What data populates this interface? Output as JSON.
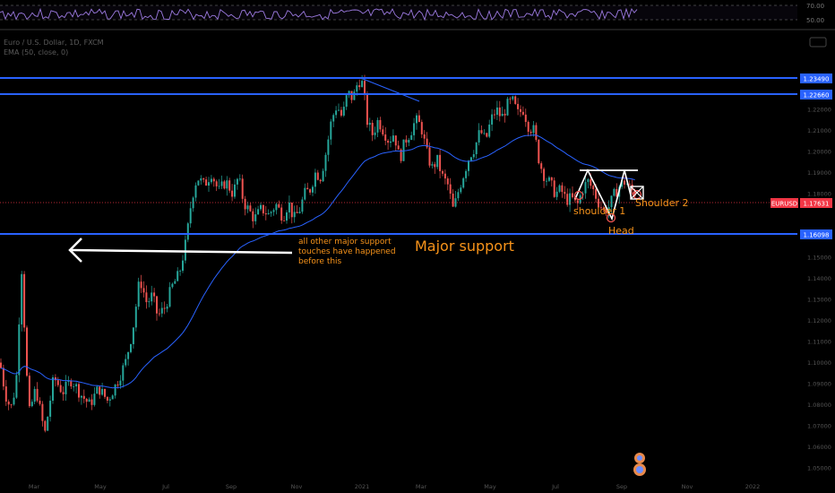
{
  "header": {
    "symbol_title": "Euro / U.S. Dollar, 1D, FXCM",
    "indicator": "EMA (50, close, 0)"
  },
  "oscillator": {
    "level_upper": "70.00",
    "level_mid": "50.00"
  },
  "colors": {
    "background": "#000000",
    "bull": "#26a69a",
    "bear": "#ef5350",
    "level_line": "#2962ff",
    "ema": "#2962ff",
    "annotation": "#f7931a",
    "price_tag": "#f23645"
  },
  "chart_data": {
    "type": "candlestick",
    "symbol": "EURUSD",
    "last_price": "1.17631",
    "y_ticks": [
      "1.22000",
      "1.21000",
      "1.20000",
      "1.19000",
      "1.18000",
      "1.16000",
      "1.15000",
      "1.14000",
      "1.13000",
      "1.12000",
      "1.11000",
      "1.10000",
      "1.09000",
      "1.08000",
      "1.07000",
      "1.06000",
      "1.05000"
    ],
    "x_ticks": [
      "Mar",
      "May",
      "Jul",
      "Sep",
      "Nov",
      "2021",
      "Mar",
      "May",
      "Jul",
      "Sep",
      "Nov",
      "2022"
    ],
    "levels": [
      {
        "value": 1.2349,
        "label": "1.23490"
      },
      {
        "value": 1.2266,
        "label": "1.22660"
      },
      {
        "value": 1.16098,
        "label": "1.16098"
      }
    ],
    "annotations": {
      "arrow_note": [
        "all other major support",
        "touches have happened",
        "before this"
      ],
      "major_support": "Major support",
      "shoulder1": "shoulder 1",
      "head": "Head",
      "shoulder2": "Shoulder 2"
    },
    "path_points": [
      [
        1.1,
        0
      ],
      [
        1.085,
        6
      ],
      [
        1.078,
        12
      ],
      [
        1.09,
        18
      ],
      [
        1.146,
        24
      ],
      [
        1.075,
        32
      ],
      [
        1.088,
        40
      ],
      [
        1.066,
        50
      ],
      [
        1.093,
        60
      ],
      [
        1.086,
        70
      ],
      [
        1.092,
        80
      ],
      [
        1.085,
        90
      ],
      [
        1.08,
        100
      ],
      [
        1.088,
        110
      ],
      [
        1.082,
        120
      ],
      [
        1.09,
        130
      ],
      [
        1.1,
        140
      ],
      [
        1.115,
        148
      ],
      [
        1.14,
        156
      ],
      [
        1.128,
        164
      ],
      [
        1.132,
        170
      ],
      [
        1.122,
        176
      ],
      [
        1.126,
        184
      ],
      [
        1.136,
        192
      ],
      [
        1.142,
        200
      ],
      [
        1.158,
        208
      ],
      [
        1.178,
        214
      ],
      [
        1.188,
        220
      ],
      [
        1.184,
        228
      ],
      [
        1.19,
        236
      ],
      [
        1.181,
        244
      ],
      [
        1.186,
        252
      ],
      [
        1.18,
        260
      ],
      [
        1.188,
        266
      ],
      [
        1.176,
        272
      ],
      [
        1.172,
        278
      ],
      [
        1.168,
        284
      ],
      [
        1.173,
        292
      ],
      [
        1.17,
        300
      ],
      [
        1.175,
        308
      ],
      [
        1.169,
        316
      ],
      [
        1.176,
        322
      ],
      [
        1.168,
        328
      ],
      [
        1.172,
        334
      ],
      [
        1.18,
        340
      ],
      [
        1.182,
        346
      ],
      [
        1.19,
        352
      ],
      [
        1.188,
        358
      ],
      [
        1.2,
        364
      ],
      [
        1.215,
        370
      ],
      [
        1.222,
        376
      ],
      [
        1.216,
        382
      ],
      [
        1.228,
        388
      ],
      [
        1.225,
        394
      ],
      [
        1.234,
        400
      ],
      [
        1.232,
        405
      ],
      [
        1.214,
        410
      ],
      [
        1.208,
        416
      ],
      [
        1.215,
        422
      ],
      [
        1.21,
        428
      ],
      [
        1.205,
        434
      ],
      [
        1.209,
        440
      ],
      [
        1.196,
        446
      ],
      [
        1.205,
        452
      ],
      [
        1.209,
        458
      ],
      [
        1.215,
        464
      ],
      [
        1.212,
        470
      ],
      [
        1.2,
        476
      ],
      [
        1.192,
        482
      ],
      [
        1.196,
        488
      ],
      [
        1.188,
        494
      ],
      [
        1.184,
        500
      ],
      [
        1.172,
        506
      ],
      [
        1.182,
        512
      ],
      [
        1.19,
        518
      ],
      [
        1.198,
        524
      ],
      [
        1.202,
        530
      ],
      [
        1.21,
        536
      ],
      [
        1.205,
        542
      ],
      [
        1.215,
        548
      ],
      [
        1.22,
        554
      ],
      [
        1.216,
        560
      ],
      [
        1.222,
        566
      ],
      [
        1.224,
        572
      ],
      [
        1.218,
        578
      ],
      [
        1.22,
        584
      ],
      [
        1.212,
        590
      ],
      [
        1.21,
        596
      ],
      [
        1.195,
        602
      ],
      [
        1.188,
        608
      ],
      [
        1.185,
        614
      ],
      [
        1.18,
        620
      ],
      [
        1.182,
        626
      ],
      [
        1.177,
        632
      ],
      [
        1.178,
        638
      ],
      [
        1.174,
        644
      ],
      [
        1.182,
        650
      ],
      [
        1.186,
        656
      ],
      [
        1.182,
        662
      ],
      [
        1.176,
        668
      ],
      [
        1.172,
        674
      ],
      [
        1.174,
        680
      ],
      [
        1.18,
        686
      ],
      [
        1.184,
        692
      ],
      [
        1.186,
        698
      ],
      [
        1.182,
        704
      ],
      [
        1.18,
        710
      ]
    ]
  }
}
